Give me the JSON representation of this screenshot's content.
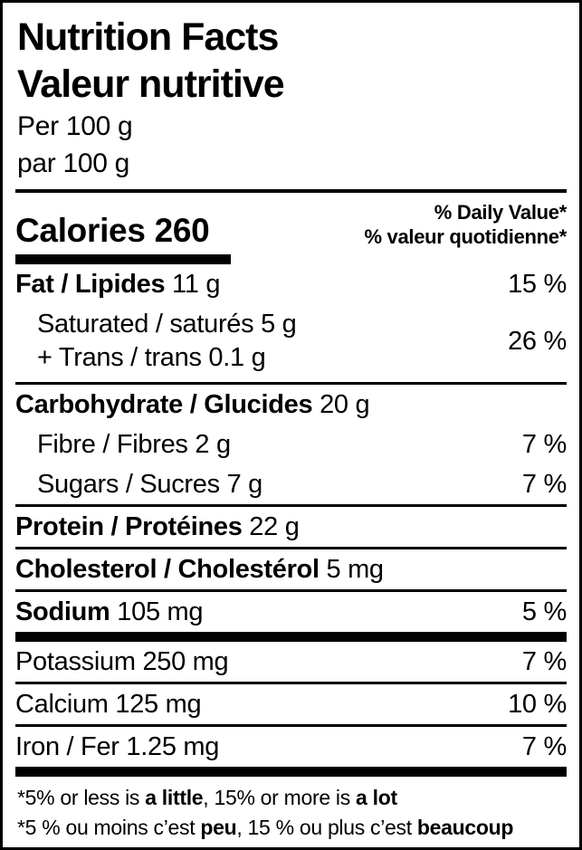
{
  "header": {
    "title_en": "Nutrition Facts",
    "title_fr": "Valeur nutritive",
    "serving_en": "Per 100 g",
    "serving_fr": "par 100 g"
  },
  "calories": {
    "label": "Calories",
    "value": "260",
    "dv_header_en": "% Daily Value*",
    "dv_header_fr": "% valeur quotidienne*"
  },
  "nutrients": [
    {
      "bold": "Fat / Lipides",
      "regular": " 11 g",
      "dv": "15 %"
    },
    {
      "line1": "Saturated / saturés 5 g",
      "line2": "+ Trans / trans 0.1 g",
      "dv": "26 %"
    },
    {
      "bold": "Carbohydrate / Glucides",
      "regular": " 20 g",
      "dv": ""
    },
    {
      "bold": "",
      "regular": "Fibre / Fibres 2 g",
      "dv": "7 %"
    },
    {
      "bold": "",
      "regular": "Sugars / Sucres 7 g",
      "dv": "7 %"
    },
    {
      "bold": "Protein / Protéines",
      "regular": " 22 g",
      "dv": ""
    },
    {
      "bold": "Cholesterol / Cholestérol",
      "regular": " 5 mg",
      "dv": ""
    },
    {
      "bold": "Sodium",
      "regular": " 105 mg",
      "dv": "5 %"
    },
    {
      "bold": "",
      "regular": "Potassium 250 mg",
      "dv": "7 %"
    },
    {
      "bold": "",
      "regular": "Calcium 125 mg",
      "dv": "10 %"
    },
    {
      "bold": "",
      "regular": "Iron / Fer 1.25 mg",
      "dv": "7 %"
    }
  ],
  "footnotes": {
    "en": [
      "*5% or less is ",
      "a little",
      ", 15% or more is ",
      "a lot"
    ],
    "fr": [
      "*5 % ou moins c’est ",
      "peu",
      ", 15 % ou plus c’est ",
      "beaucoup"
    ]
  },
  "colors": {
    "text": "#000000",
    "background": "#ffffff"
  }
}
